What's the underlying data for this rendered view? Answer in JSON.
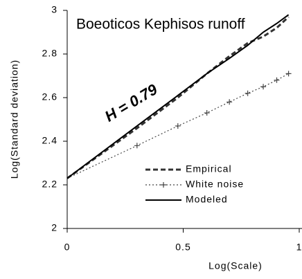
{
  "chart_data": {
    "type": "line",
    "title": "Boeoticos Kephisos runoff",
    "annotation": "H = 0.79",
    "xlabel": "Log(Scale)",
    "ylabel": "Log(Standard deviation)",
    "x": [
      0,
      0.301,
      0.477,
      0.602,
      0.699,
      0.778,
      0.845,
      0.903,
      0.954
    ],
    "series": [
      {
        "name": "Empirical",
        "color": "#333333",
        "style": "dashed",
        "values": [
          2.23,
          2.46,
          2.6,
          2.71,
          2.79,
          2.85,
          2.88,
          2.92,
          2.97
        ]
      },
      {
        "name": "White noise",
        "color": "#444444",
        "style": "dotted",
        "marker": "plus",
        "values": [
          2.23,
          2.38,
          2.47,
          2.53,
          2.58,
          2.62,
          2.65,
          2.68,
          2.71
        ]
      },
      {
        "name": "Modeled",
        "color": "#000000",
        "style": "solid",
        "values": [
          2.23,
          2.47,
          2.61,
          2.71,
          2.78,
          2.84,
          2.9,
          2.94,
          2.98
        ]
      }
    ],
    "xlim": [
      0,
      1
    ],
    "xticks": [
      0,
      0.5,
      1
    ],
    "ylim": [
      2,
      3
    ],
    "yticks": [
      2,
      2.2,
      2.4,
      2.6,
      2.8,
      3
    ],
    "legend": "lower right"
  }
}
